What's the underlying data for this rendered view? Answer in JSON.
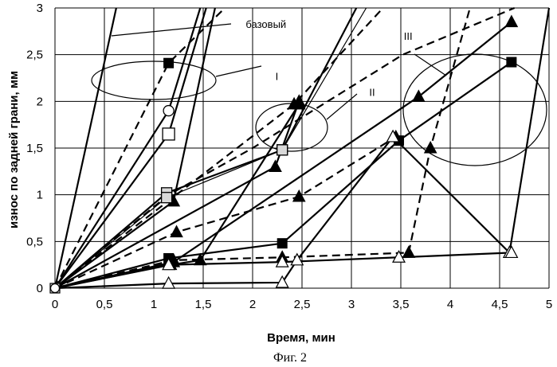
{
  "chart_data": {
    "type": "line",
    "xlabel": "Время, мин",
    "ylabel": "износ по задней грани, мм",
    "caption": "Фиг. 2",
    "xlim": [
      0,
      5
    ],
    "ylim": [
      0,
      3
    ],
    "x_ticks": [
      "0",
      "0,5",
      "1",
      "1,5",
      "2",
      "2,5",
      "3",
      "3,5",
      "4",
      "4,5",
      "5"
    ],
    "y_ticks": [
      "0",
      "0,5",
      "1",
      "1,5",
      "2",
      "2,5",
      "3"
    ],
    "grid": true,
    "colors": {
      "line": "#000000",
      "grid": "#000000",
      "fill_gray": "#d9d9d9"
    },
    "annotations": [
      {
        "label": "базовый",
        "x": 1.85,
        "y": 2.83
      },
      {
        "label": "I",
        "x": 2.15,
        "y": 2.27
      },
      {
        "label": "II",
        "x": 3.1,
        "y": 2.1
      },
      {
        "label": "III",
        "x": 3.45,
        "y": 2.7
      }
    ],
    "series": [
      {
        "style": "solid",
        "marker": "none",
        "x": [
          0,
          0.62
        ],
        "y": [
          0,
          3.0
        ]
      },
      {
        "style": "solid",
        "marker": "circle-open",
        "x": [
          0,
          1.15,
          1.47
        ],
        "y": [
          0,
          1.9,
          3.0
        ]
      },
      {
        "style": "solid",
        "marker": "square-open",
        "x": [
          0,
          1.15,
          1.53
        ],
        "y": [
          0,
          1.65,
          3.0
        ]
      },
      {
        "style": "dashed",
        "marker": "square-filled",
        "x": [
          0,
          1.15,
          1.72
        ],
        "y": [
          0,
          2.41,
          3.0
        ]
      },
      {
        "style": "solid",
        "marker": "triangle-filled",
        "x": [
          0,
          1.2,
          1.62
        ],
        "y": [
          0,
          0.93,
          3.0
        ]
      },
      {
        "style": "solid",
        "marker": "square-gray",
        "x": [
          0,
          1.13,
          2.3,
          3.05
        ],
        "y": [
          0,
          1.02,
          1.48,
          3.0
        ]
      },
      {
        "style": "solid-thin",
        "marker": "square-gray",
        "x": [
          0,
          1.13,
          2.3,
          3.15
        ],
        "y": [
          0,
          0.97,
          1.48,
          3.0
        ]
      },
      {
        "style": "solid",
        "marker": "triangle-filled",
        "x": [
          0,
          2.23,
          2.47
        ],
        "y": [
          0,
          1.3,
          2.0
        ]
      },
      {
        "style": "dashed",
        "marker": "triangle-filled",
        "x": [
          0,
          2.42,
          3.32
        ],
        "y": [
          0,
          1.97,
          3.0
        ]
      },
      {
        "style": "dashed",
        "marker": "triangle-filled",
        "x": [
          0,
          1.23,
          2.47,
          3.45
        ],
        "y": [
          0,
          0.6,
          0.98,
          1.62
        ]
      },
      {
        "style": "solid",
        "marker": "triangle-filled",
        "x": [
          0,
          1.17,
          1.47,
          2.47
        ],
        "y": [
          0,
          0.25,
          0.3,
          1.97
        ]
      },
      {
        "style": "solid",
        "marker": "square-filled",
        "x": [
          0,
          1.15,
          2.3,
          3.48,
          4.62
        ],
        "y": [
          0,
          0.32,
          0.48,
          1.58,
          2.42
        ]
      },
      {
        "style": "solid",
        "marker": "triangle-filled",
        "x": [
          0,
          1.2,
          3.68,
          4.62
        ],
        "y": [
          0,
          0.28,
          2.05,
          2.85
        ]
      },
      {
        "style": "dashed",
        "marker": "triangle-filled",
        "x": [
          0,
          1.2,
          2.3,
          3.58,
          3.8,
          4.2
        ],
        "y": [
          0,
          0.3,
          0.33,
          0.38,
          1.5,
          3.0
        ]
      },
      {
        "style": "solid",
        "marker": "triangle-open",
        "x": [
          0,
          1.15,
          2.3,
          2.45,
          3.42,
          4.6,
          5.0
        ],
        "y": [
          0,
          0.05,
          0.06,
          0.3,
          1.62,
          0.38,
          3.0
        ]
      },
      {
        "style": "solid",
        "marker": "triangle-open",
        "x": [
          0,
          1.15,
          2.3,
          3.48,
          4.62
        ],
        "y": [
          0,
          0.25,
          0.28,
          0.33,
          0.38
        ]
      },
      {
        "style": "dashed",
        "marker": "none",
        "x": [
          0,
          1.15,
          2.0,
          3.52,
          4.65
        ],
        "y": [
          0,
          1.0,
          1.5,
          2.5,
          3.0
        ]
      }
    ]
  }
}
